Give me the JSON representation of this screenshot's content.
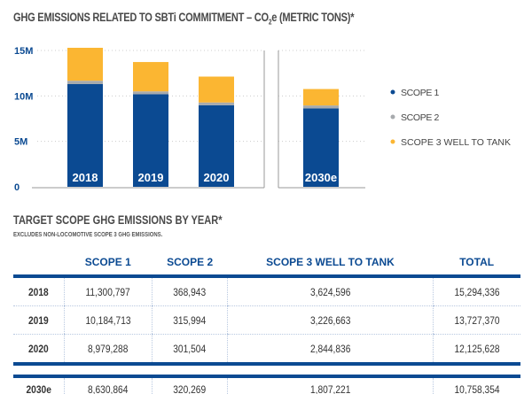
{
  "title_main": "GHG EMISSIONS RELATED TO SBTi COMMITMENT – CO",
  "title_sub": "2",
  "title_end": "e (METRIC TONS)*",
  "chart_data": {
    "type": "bar",
    "stacked": true,
    "categories": [
      "2018",
      "2019",
      "2020",
      "2030e"
    ],
    "series": [
      {
        "name": "SCOPE 1",
        "color": "#0b4a92",
        "values": [
          11300797,
          10184713,
          8979288,
          8630864
        ]
      },
      {
        "name": "SCOPE 2",
        "color": "#a7aaad",
        "values": [
          368943,
          315994,
          301504,
          320269
        ]
      },
      {
        "name": "SCOPE 3 WELL TO TANK",
        "color": "#fbb632",
        "values": [
          3624596,
          3226663,
          2844836,
          1807221
        ]
      }
    ],
    "yticks": [
      "0",
      "5M",
      "10M",
      "15M"
    ],
    "ylim": [
      0,
      15000000
    ],
    "grid": true,
    "legend": "right"
  },
  "table": {
    "title": "TARGET SCOPE GHG EMISSIONS BY YEAR*",
    "note": "EXCLUDES NON-LOCOMOTIVE SCOPE 3 GHG EMISSIONS.",
    "headers": [
      "",
      "SCOPE 1",
      "SCOPE 2",
      "SCOPE 3 WELL TO TANK",
      "TOTAL"
    ],
    "rows": [
      [
        "2018",
        "11,300,797",
        "368,943",
        "3,624,596",
        "15,294,336"
      ],
      [
        "2019",
        "10,184,713",
        "315,994",
        "3,226,663",
        "13,727,370"
      ],
      [
        "2020",
        "8,979,288",
        "301,504",
        "2,844,836",
        "12,125,628"
      ]
    ],
    "estimate_row": [
      "2030e",
      "8,630,864",
      "320,269",
      "1,807,221",
      "10,758,354"
    ]
  }
}
